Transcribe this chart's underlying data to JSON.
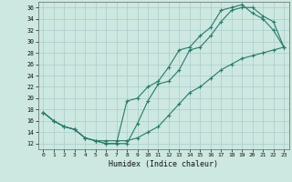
{
  "xlabel": "Humidex (Indice chaleur)",
  "background_color": "#cce8e0",
  "grid_color": "#aacccc",
  "line_color": "#2a7a6a",
  "xlim": [
    -0.5,
    23.5
  ],
  "ylim": [
    11,
    37
  ],
  "yticks": [
    12,
    14,
    16,
    18,
    20,
    22,
    24,
    26,
    28,
    30,
    32,
    34,
    36
  ],
  "xticks": [
    0,
    1,
    2,
    3,
    4,
    5,
    6,
    7,
    8,
    9,
    10,
    11,
    12,
    13,
    14,
    15,
    16,
    17,
    18,
    19,
    20,
    21,
    22,
    23
  ],
  "curve1_x": [
    0,
    1,
    2,
    3,
    4,
    5,
    6,
    7,
    8,
    9,
    10,
    11,
    12,
    13,
    14,
    15,
    16,
    17,
    18,
    19,
    20,
    21,
    22,
    23
  ],
  "curve1_y": [
    17.5,
    16.0,
    15.0,
    14.5,
    13.0,
    12.5,
    12.0,
    12.0,
    12.0,
    15.5,
    19.5,
    22.5,
    23.0,
    25.0,
    28.5,
    29.0,
    31.0,
    33.5,
    35.5,
    36.0,
    36.0,
    34.5,
    33.5,
    29.0
  ],
  "curve2_x": [
    0,
    1,
    2,
    3,
    4,
    5,
    6,
    7,
    8,
    9,
    10,
    11,
    12,
    13,
    14,
    15,
    16,
    17,
    18,
    19,
    20,
    21,
    22,
    23
  ],
  "curve2_y": [
    17.5,
    16.0,
    15.0,
    14.5,
    13.0,
    12.5,
    12.0,
    12.0,
    19.5,
    20.0,
    22.0,
    23.0,
    25.5,
    28.5,
    29.0,
    31.0,
    32.5,
    35.5,
    36.0,
    36.5,
    35.0,
    34.0,
    32.0,
    29.0
  ],
  "curve3_x": [
    0,
    1,
    2,
    3,
    4,
    5,
    6,
    7,
    8,
    9,
    10,
    11,
    12,
    13,
    14,
    15,
    16,
    17,
    18,
    19,
    20,
    21,
    22,
    23
  ],
  "curve3_y": [
    17.5,
    16.0,
    15.0,
    14.5,
    13.0,
    12.5,
    12.5,
    12.5,
    12.5,
    13.0,
    14.0,
    15.0,
    17.0,
    19.0,
    21.0,
    22.0,
    23.5,
    25.0,
    26.0,
    27.0,
    27.5,
    28.0,
    28.5,
    29.0
  ]
}
